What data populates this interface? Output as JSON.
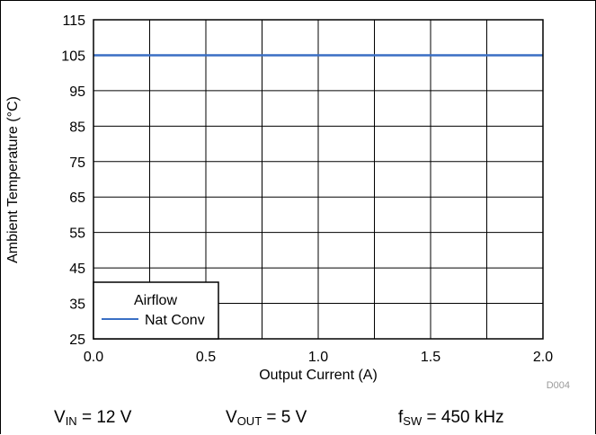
{
  "chart_data": {
    "type": "line",
    "xlabel": "Output Current (A)",
    "ylabel": "Ambient Temperature (°C)",
    "xlim": [
      0.0,
      2.0
    ],
    "ylim": [
      25,
      115
    ],
    "x_ticks": [
      "0.0",
      "0.5",
      "1.0",
      "1.5",
      "2.0"
    ],
    "x_tick_values": [
      0.0,
      0.5,
      1.0,
      1.5,
      2.0
    ],
    "x_grid_step": 0.25,
    "y_ticks": [
      "25",
      "35",
      "45",
      "55",
      "65",
      "75",
      "85",
      "95",
      "105",
      "115"
    ],
    "y_tick_values": [
      25,
      35,
      45,
      55,
      65,
      75,
      85,
      95,
      105,
      115
    ],
    "grid": true,
    "legend": {
      "title": "Airflow",
      "placement": "bottom-left"
    },
    "series": [
      {
        "name": "Nat Conv",
        "color": "#3a6fc4",
        "x": [
          0.0,
          2.0
        ],
        "y": [
          105,
          105
        ]
      }
    ],
    "figure_id": "D004"
  },
  "conditions": {
    "vin": {
      "symbol": "V",
      "sub": "IN",
      "value": " = 12 V"
    },
    "vout": {
      "symbol": "V",
      "sub": "OUT",
      "value": " = 5 V"
    },
    "fsw": {
      "symbol": "f",
      "sub": "SW",
      "value": " = 450 kHz"
    }
  }
}
